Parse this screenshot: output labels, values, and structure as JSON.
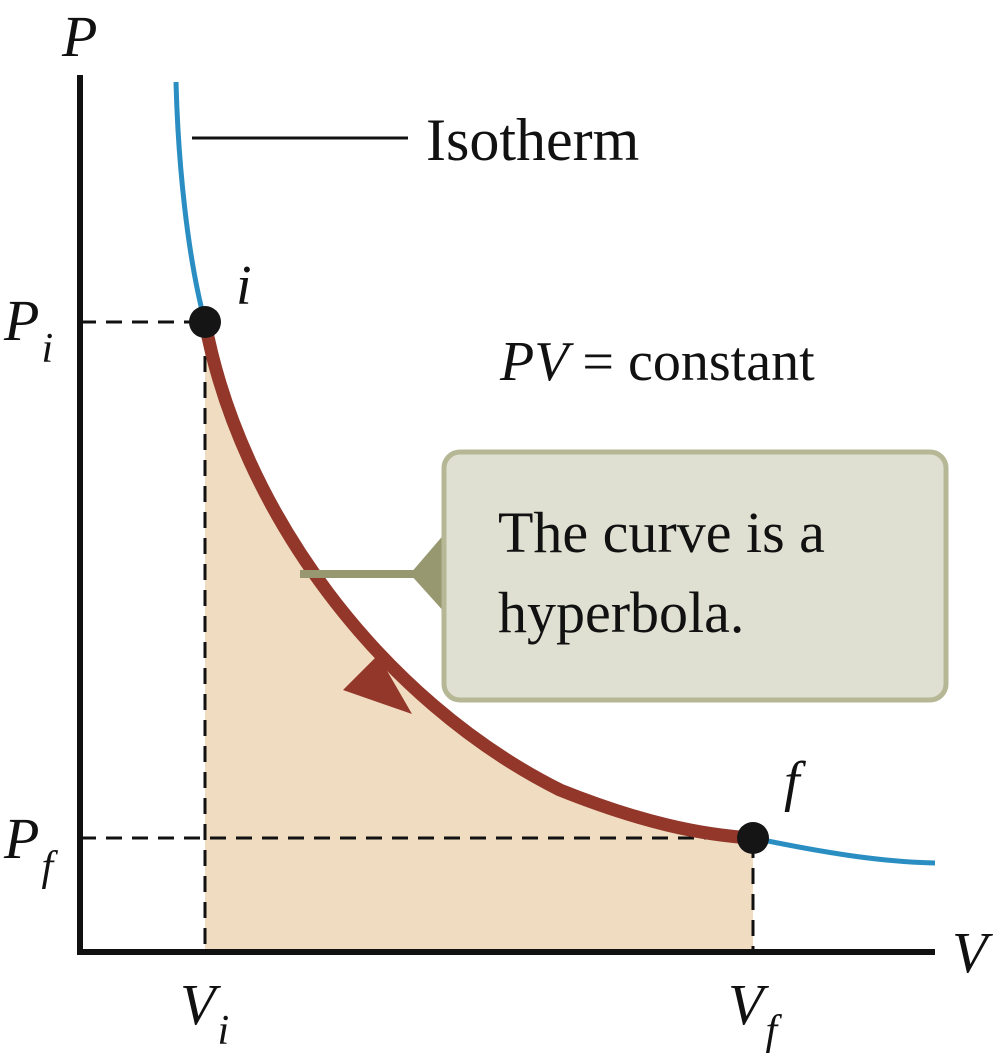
{
  "axes": {
    "y_label": "P",
    "x_label": "V"
  },
  "points": {
    "initial": {
      "label": "i",
      "p_label": "P",
      "p_sub": "i",
      "v_label": "V",
      "v_sub": "i"
    },
    "final": {
      "label": "f",
      "p_label": "P",
      "p_sub": "f",
      "v_label": "V",
      "v_sub": "f"
    }
  },
  "labels": {
    "isotherm": "Isotherm",
    "equation_pv": "PV",
    "equation_rest": " = constant"
  },
  "callout": {
    "line1": "The curve is a",
    "line2": "hyperbola."
  },
  "colors": {
    "isotherm_curve": "#2a8ec2",
    "process_curve": "#93372a",
    "area_fill": "#f0dcc0",
    "callout_fill": "#dfe0d2",
    "callout_border": "#b5b795",
    "callout_pointer": "#979870",
    "point": "#151515",
    "axis": "#111111"
  }
}
